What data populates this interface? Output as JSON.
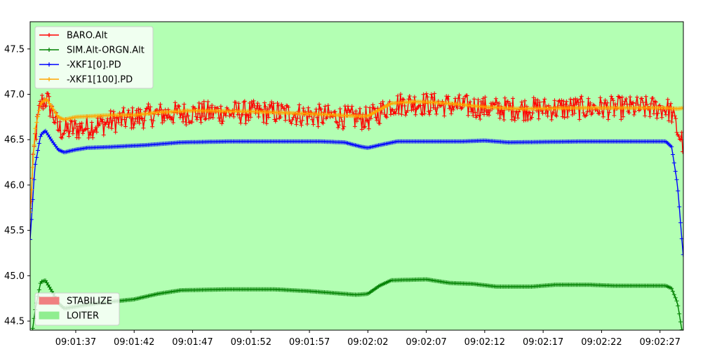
{
  "chart_data": {
    "type": "line",
    "background_mode_color": "#b3ffb3",
    "x_axis": {
      "kind": "time",
      "range": [
        "09:01:33.1",
        "09:02:29.0"
      ],
      "tick_labels": [
        "09:01:37",
        "09:01:42",
        "09:01:47",
        "09:01:52",
        "09:01:57",
        "09:02:02",
        "09:02:07",
        "09:02:12",
        "09:02:17",
        "09:02:22",
        "09:02:27"
      ]
    },
    "y_axis": {
      "range": [
        44.4,
        47.8
      ],
      "tick_labels": [
        "44.5",
        "45.0",
        "45.5",
        "46.0",
        "46.5",
        "47.0",
        "47.5"
      ]
    },
    "grid": false,
    "legend_placement": "top-left",
    "mode_legend_placement": "bottom-left",
    "series": [
      {
        "name": "BARO.Alt",
        "color": "#ff0000",
        "marker": "+",
        "noise": 0.13,
        "points": [
          [
            "09:01:33.1",
            45.7
          ],
          [
            "09:01:33.5",
            46.5
          ],
          [
            "09:01:34.0",
            46.9
          ],
          [
            "09:01:34.5",
            46.95
          ],
          [
            "09:01:35.0",
            46.8
          ],
          [
            "09:01:35.5",
            46.62
          ],
          [
            "09:01:36.0",
            46.6
          ],
          [
            "09:01:37.0",
            46.62
          ],
          [
            "09:01:38.0",
            46.64
          ],
          [
            "09:01:39.0",
            46.66
          ],
          [
            "09:01:40.0",
            46.7
          ],
          [
            "09:01:42.0",
            46.74
          ],
          [
            "09:01:44.0",
            46.78
          ],
          [
            "09:01:46.0",
            46.79
          ],
          [
            "09:01:50.0",
            46.8
          ],
          [
            "09:01:54.0",
            46.8
          ],
          [
            "09:01:58.0",
            46.76
          ],
          [
            "09:02:01.0",
            46.74
          ],
          [
            "09:02:02.0",
            46.73
          ],
          [
            "09:02:03.0",
            46.8
          ],
          [
            "09:02:04.0",
            46.89
          ],
          [
            "09:02:06.0",
            46.9
          ],
          [
            "09:02:09.0",
            46.88
          ],
          [
            "09:02:11.0",
            46.86
          ],
          [
            "09:02:13.0",
            46.84
          ],
          [
            "09:02:17.0",
            46.84
          ],
          [
            "09:02:21.0",
            46.85
          ],
          [
            "09:02:25.0",
            46.85
          ],
          [
            "09:02:27.5",
            46.85
          ],
          [
            "09:02:28.0",
            46.8
          ],
          [
            "09:02:28.5",
            46.6
          ],
          [
            "09:02:29.0",
            46.45
          ]
        ]
      },
      {
        "name": "SIM.Alt-ORGN.Alt",
        "color": "#008000",
        "marker": "+",
        "noise": 0,
        "points": [
          [
            "09:01:33.1",
            44.2
          ],
          [
            "09:01:33.5",
            44.6
          ],
          [
            "09:01:34.0",
            44.93
          ],
          [
            "09:01:34.4",
            44.95
          ],
          [
            "09:01:35.0",
            44.82
          ],
          [
            "09:01:35.5",
            44.7
          ],
          [
            "09:01:36.0",
            44.64
          ],
          [
            "09:01:37.0",
            44.66
          ],
          [
            "09:01:39.0",
            44.7
          ],
          [
            "09:01:42.0",
            44.74
          ],
          [
            "09:01:44.0",
            44.8
          ],
          [
            "09:01:46.0",
            44.84
          ],
          [
            "09:01:50.0",
            44.85
          ],
          [
            "09:01:54.0",
            44.85
          ],
          [
            "09:01:57.0",
            44.83
          ],
          [
            "09:02:01.0",
            44.79
          ],
          [
            "09:02:02.0",
            44.8
          ],
          [
            "09:02:03.0",
            44.89
          ],
          [
            "09:02:04.0",
            44.95
          ],
          [
            "09:02:07.0",
            44.96
          ],
          [
            "09:02:09.0",
            44.92
          ],
          [
            "09:02:11.0",
            44.91
          ],
          [
            "09:02:13.0",
            44.88
          ],
          [
            "09:02:16.0",
            44.88
          ],
          [
            "09:02:18.0",
            44.9
          ],
          [
            "09:02:21.0",
            44.9
          ],
          [
            "09:02:23.0",
            44.89
          ],
          [
            "09:02:27.5",
            44.89
          ],
          [
            "09:02:28.0",
            44.86
          ],
          [
            "09:02:28.5",
            44.7
          ],
          [
            "09:02:29.0",
            44.3
          ]
        ]
      },
      {
        "name": "-XKF1[0].PD",
        "color": "#0000ff",
        "marker": "+",
        "noise": 0,
        "points": [
          [
            "09:01:33.1",
            45.4
          ],
          [
            "09:01:33.5",
            46.2
          ],
          [
            "09:01:34.0",
            46.55
          ],
          [
            "09:01:34.4",
            46.6
          ],
          [
            "09:01:35.0",
            46.48
          ],
          [
            "09:01:35.5",
            46.39
          ],
          [
            "09:01:36.0",
            46.36
          ],
          [
            "09:01:37.0",
            46.39
          ],
          [
            "09:01:38.0",
            46.41
          ],
          [
            "09:01:40.0",
            46.42
          ],
          [
            "09:01:43.0",
            46.44
          ],
          [
            "09:01:46.0",
            46.47
          ],
          [
            "09:01:50.0",
            46.48
          ],
          [
            "09:01:58.0",
            46.48
          ],
          [
            "09:02:00.0",
            46.47
          ],
          [
            "09:02:01.5",
            46.42
          ],
          [
            "09:02:02.0",
            46.41
          ],
          [
            "09:02:03.0",
            46.44
          ],
          [
            "09:02:04.5",
            46.48
          ],
          [
            "09:02:10.0",
            46.48
          ],
          [
            "09:02:12.0",
            46.49
          ],
          [
            "09:02:14.0",
            46.47
          ],
          [
            "09:02:20.0",
            46.48
          ],
          [
            "09:02:27.5",
            46.48
          ],
          [
            "09:02:28.0",
            46.42
          ],
          [
            "09:02:28.5",
            46.0
          ],
          [
            "09:02:29.0",
            45.2
          ]
        ]
      },
      {
        "name": "-XKF1[100].PD",
        "color": "#ffa500",
        "marker": "+",
        "noise": 0,
        "points": [
          [
            "09:01:33.1",
            45.7
          ],
          [
            "09:01:33.5",
            46.6
          ],
          [
            "09:01:34.0",
            46.9
          ],
          [
            "09:01:34.5",
            46.95
          ],
          [
            "09:01:35.0",
            46.85
          ],
          [
            "09:01:35.5",
            46.75
          ],
          [
            "09:01:36.0",
            46.72
          ],
          [
            "09:01:37.0",
            46.75
          ],
          [
            "09:01:40.0",
            46.77
          ],
          [
            "09:01:42.0",
            46.77
          ],
          [
            "09:01:44.0",
            46.8
          ],
          [
            "09:01:47.0",
            46.82
          ],
          [
            "09:01:52.0",
            46.81
          ],
          [
            "09:01:58.0",
            46.78
          ],
          [
            "09:02:01.0",
            46.76
          ],
          [
            "09:02:02.0",
            46.76
          ],
          [
            "09:02:03.0",
            46.83
          ],
          [
            "09:02:04.0",
            46.9
          ],
          [
            "09:02:06.0",
            46.92
          ],
          [
            "09:02:09.0",
            46.9
          ],
          [
            "09:02:12.0",
            46.86
          ],
          [
            "09:02:15.0",
            46.84
          ],
          [
            "09:02:20.0",
            46.85
          ],
          [
            "09:02:27.5",
            46.85
          ],
          [
            "09:02:28.5",
            46.84
          ],
          [
            "09:02:29.0",
            46.85
          ]
        ]
      }
    ],
    "mode_legend": [
      {
        "name": "STABILIZE",
        "color": "#f08080"
      },
      {
        "name": "LOITER",
        "color": "#90ee90"
      }
    ]
  }
}
